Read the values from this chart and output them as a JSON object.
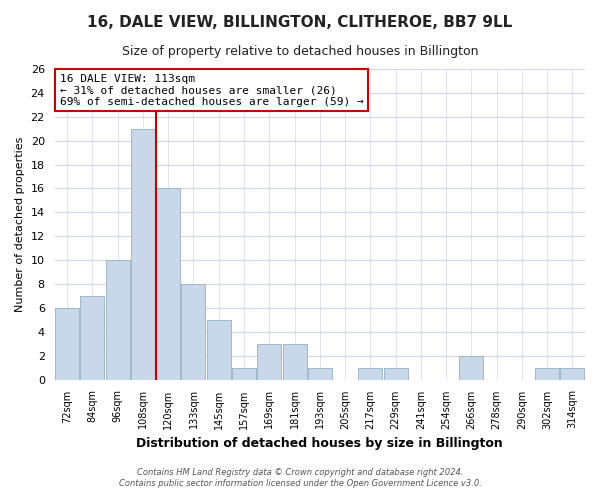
{
  "title": "16, DALE VIEW, BILLINGTON, CLITHEROE, BB7 9LL",
  "subtitle": "Size of property relative to detached houses in Billington",
  "xlabel": "Distribution of detached houses by size in Billington",
  "ylabel": "Number of detached properties",
  "bar_labels": [
    "72sqm",
    "84sqm",
    "96sqm",
    "108sqm",
    "120sqm",
    "133sqm",
    "145sqm",
    "157sqm",
    "169sqm",
    "181sqm",
    "193sqm",
    "205sqm",
    "217sqm",
    "229sqm",
    "241sqm",
    "254sqm",
    "266sqm",
    "278sqm",
    "290sqm",
    "302sqm",
    "314sqm"
  ],
  "bar_values": [
    6,
    7,
    10,
    21,
    16,
    8,
    5,
    1,
    3,
    3,
    1,
    0,
    1,
    1,
    0,
    0,
    2,
    0,
    0,
    1,
    1
  ],
  "bar_color": "#c8d8e8",
  "bar_edge_color": "#a0b8cc",
  "marker_color": "#cc0000",
  "annotation_line1": "16 DALE VIEW: 113sqm",
  "annotation_line2": "← 31% of detached houses are smaller (26)",
  "annotation_line3": "69% of semi-detached houses are larger (59) →",
  "annotation_box_color": "#ffffff",
  "annotation_box_edge": "#cc0000",
  "ylim": [
    0,
    26
  ],
  "yticks": [
    0,
    2,
    4,
    6,
    8,
    10,
    12,
    14,
    16,
    18,
    20,
    22,
    24,
    26
  ],
  "grid_color": "#d0d8e8",
  "background_color": "#ffffff",
  "title_fontsize": 11,
  "subtitle_fontsize": 9,
  "footer1": "Contains HM Land Registry data © Crown copyright and database right 2024.",
  "footer2": "Contains public sector information licensed under the Open Government Licence v3.0."
}
